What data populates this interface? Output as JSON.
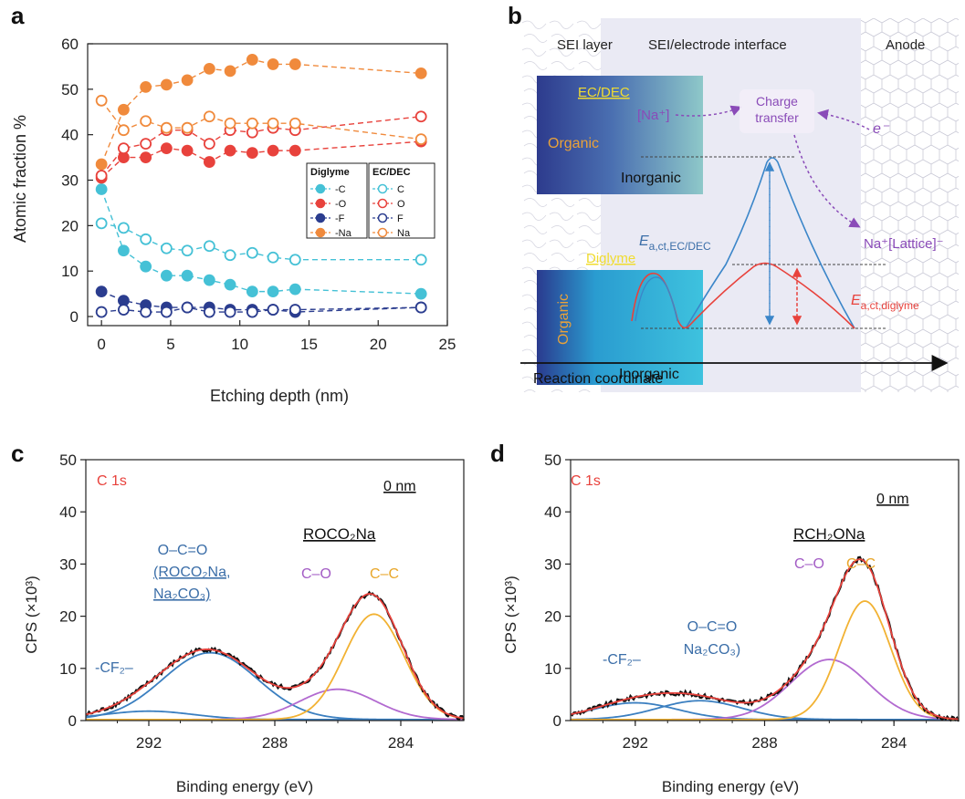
{
  "panels": {
    "a": "a",
    "b": "b",
    "c": "c",
    "d": "d"
  },
  "colors": {
    "C": "#45c1d6",
    "O": "#e8423c",
    "F": "#2b3d8f",
    "Na": "#f08a3c",
    "fit_total": "#e8423c",
    "fit_orange": "#f2b233",
    "fit_purple": "#b26ad0",
    "fit_blue": "#3b7fc0",
    "raw": "#111111",
    "label_blue": "#3b6ea8",
    "label_purple": "#a35cc5",
    "label_orange": "#e8a62a",
    "label_red": "#e8423c"
  },
  "chart_data": [
    {
      "id": "a",
      "type": "scatter",
      "xlabel": "Etching depth (nm)",
      "ylabel": "Atomic fraction %",
      "xlim": [
        -1,
        25
      ],
      "ylim": [
        -2,
        60
      ],
      "xticks": [
        "0",
        "5",
        "10",
        "15",
        "20",
        "25"
      ],
      "yticks": [
        "0",
        "10",
        "20",
        "30",
        "40",
        "50",
        "60"
      ],
      "legend_diglyme_title": "Diglyme",
      "legend_ecdec_title": "EC/DEC",
      "legend_items": [
        "C",
        "O",
        "F",
        "Na"
      ],
      "series": [
        {
          "name": "C",
          "group": "Diglyme",
          "filled": true,
          "color_key": "C",
          "x": [
            0,
            1.6,
            3.2,
            4.7,
            6.2,
            7.8,
            9.3,
            10.9,
            12.4,
            14,
            23.1
          ],
          "y": [
            28,
            14.5,
            11,
            9,
            9,
            8,
            7,
            5.5,
            5.5,
            6,
            5
          ]
        },
        {
          "name": "O",
          "group": "Diglyme",
          "filled": true,
          "color_key": "O",
          "x": [
            0,
            1.6,
            3.2,
            4.7,
            6.2,
            7.8,
            9.3,
            10.9,
            12.4,
            14,
            23.1
          ],
          "y": [
            30.5,
            35,
            35,
            37,
            36.5,
            34,
            36.5,
            36,
            36.5,
            36.5,
            38.5
          ]
        },
        {
          "name": "F",
          "group": "Diglyme",
          "filled": true,
          "color_key": "F",
          "x": [
            0,
            1.6,
            3.2,
            4.7,
            6.2,
            7.8,
            9.3,
            10.9,
            12.4,
            14,
            23.1
          ],
          "y": [
            5.5,
            3.5,
            2.5,
            2,
            2,
            2,
            1.5,
            1.5,
            1.5,
            1,
            2
          ]
        },
        {
          "name": "Na",
          "group": "Diglyme",
          "filled": true,
          "color_key": "Na",
          "x": [
            0,
            1.6,
            3.2,
            4.7,
            6.2,
            7.8,
            9.3,
            10.9,
            12.4,
            14,
            23.1
          ],
          "y": [
            33.5,
            45.5,
            50.5,
            51,
            52,
            54.5,
            54,
            56.5,
            55.5,
            55.5,
            53.5
          ]
        },
        {
          "name": "C",
          "group": "EC/DEC",
          "filled": false,
          "color_key": "C",
          "x": [
            0,
            1.6,
            3.2,
            4.7,
            6.2,
            7.8,
            9.3,
            10.9,
            12.4,
            14,
            23.1
          ],
          "y": [
            20.5,
            19.5,
            17,
            15,
            14.5,
            15.5,
            13.5,
            14,
            13,
            12.5,
            12.5
          ]
        },
        {
          "name": "O",
          "group": "EC/DEC",
          "filled": false,
          "color_key": "O",
          "x": [
            0,
            1.6,
            3.2,
            4.7,
            6.2,
            7.8,
            9.3,
            10.9,
            12.4,
            14,
            23.1
          ],
          "y": [
            31,
            37,
            38,
            41,
            41,
            38,
            41,
            40.5,
            41.5,
            41,
            44
          ]
        },
        {
          "name": "F",
          "group": "EC/DEC",
          "filled": false,
          "color_key": "F",
          "x": [
            0,
            1.6,
            3.2,
            4.7,
            6.2,
            7.8,
            9.3,
            10.9,
            12.4,
            14,
            23.1
          ],
          "y": [
            1,
            1.5,
            1,
            1,
            2,
            1,
            1,
            1,
            1.5,
            1.5,
            2
          ]
        },
        {
          "name": "Na",
          "group": "EC/DEC",
          "filled": false,
          "color_key": "Na",
          "x": [
            0,
            1.6,
            3.2,
            4.7,
            6.2,
            7.8,
            9.3,
            10.9,
            12.4,
            14,
            23.1
          ],
          "y": [
            47.5,
            41,
            43,
            41.5,
            41.5,
            44,
            42.5,
            42.5,
            42.5,
            42.5,
            39
          ]
        }
      ]
    },
    {
      "id": "c",
      "type": "line",
      "xlabel": "Binding energy (eV)",
      "ylabel": "CPS (×10³)",
      "xlim": [
        294,
        282
      ],
      "ylim": [
        0,
        50
      ],
      "xticks": [
        "292",
        "288",
        "284"
      ],
      "yticks": [
        "0",
        "10",
        "20",
        "30",
        "40",
        "50"
      ],
      "corner_label": "C 1s",
      "depth_label": "0 nm",
      "peaks": [
        {
          "role": "CF2",
          "center": 292,
          "height": 1.6,
          "width": 1.4,
          "color_key": "fit_blue"
        },
        {
          "role": "OCO",
          "center": 290.05,
          "height": 12.8,
          "width": 1.5,
          "color_key": "fit_blue"
        },
        {
          "role": "CO",
          "center": 286.0,
          "height": 5.8,
          "width": 1.2,
          "color_key": "fit_purple"
        },
        {
          "role": "CC",
          "center": 284.85,
          "height": 20.2,
          "width": 0.95,
          "color_key": "fit_orange"
        }
      ],
      "annotations": {
        "cf2": "-CF₂–",
        "oco_1": "O–C=O",
        "oco_2": "(ROCO₂Na,",
        "oco_3": "Na₂CO₃)",
        "co": "C–O",
        "cc": "C–C",
        "species": "ROCO₂Na"
      }
    },
    {
      "id": "d",
      "type": "line",
      "xlabel": "Binding energy (eV)",
      "ylabel": "CPS (×10³)",
      "xlim": [
        294,
        282
      ],
      "ylim": [
        0,
        50
      ],
      "xticks": [
        "292",
        "288",
        "284"
      ],
      "yticks": [
        "0",
        "10",
        "20",
        "30",
        "40",
        "50"
      ],
      "corner_label": "C 1s",
      "depth_label": "0 nm",
      "peaks": [
        {
          "role": "CF2",
          "center": 292.0,
          "height": 3.2,
          "width": 1.3,
          "color_key": "fit_blue"
        },
        {
          "role": "OCO",
          "center": 290.0,
          "height": 3.6,
          "width": 1.3,
          "color_key": "fit_blue"
        },
        {
          "role": "CO",
          "center": 286.0,
          "height": 11.5,
          "width": 1.2,
          "color_key": "fit_purple"
        },
        {
          "role": "CC",
          "center": 284.9,
          "height": 22.7,
          "width": 0.8,
          "color_key": "fit_orange"
        }
      ],
      "annotations": {
        "cf2": "-CF₂–",
        "oco_1": "O–C=O",
        "oco_2": "Na₂CO₃)",
        "co": "C–O",
        "cc": "C–C",
        "species": "RCH₂ONa"
      }
    }
  ],
  "diagram_b": {
    "header_sei": "SEI layer",
    "header_interface": "SEI/electrode interface",
    "header_anode": "Anode",
    "ecdec_label": "EC/DEC",
    "organic_top": "Organic",
    "inorganic_top": "Inorganic",
    "na_ion": "[Na⁺]",
    "charge_transfer_1": "Charge",
    "charge_transfer_2": "transfer",
    "electron": "e⁻",
    "na_lattice": "Na⁺[Lattice]⁻",
    "ea_ecdec_main": "E",
    "ea_ecdec_sub": "a,ct,EC/DEC",
    "diglyme_label": "Diglyme",
    "organic_bottom": "Organic",
    "inorganic_bottom": "Inorganic",
    "ea_diglyme_main": "E",
    "ea_diglyme_sub": "a,ct,diglyme",
    "reaction_coordinate": "Reaction coordinate"
  }
}
